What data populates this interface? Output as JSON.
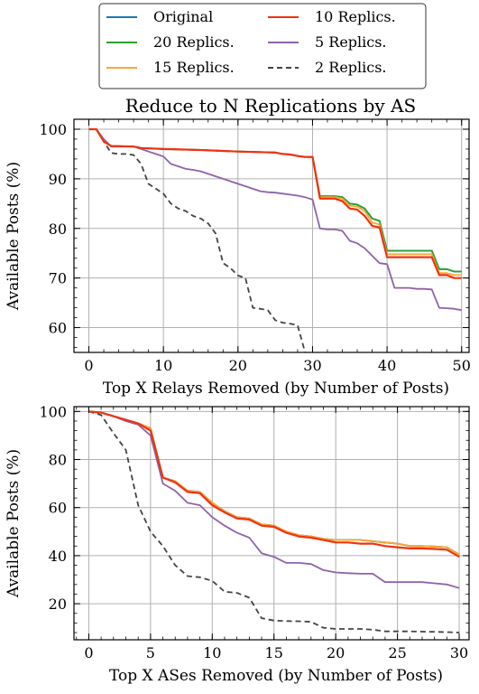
{
  "legend": {
    "items": [
      {
        "key": "orig",
        "label": "Original"
      },
      {
        "key": "r20",
        "label": "20 Replics."
      },
      {
        "key": "r15",
        "label": "15 Replics."
      },
      {
        "key": "r10",
        "label": "10 Replics."
      },
      {
        "key": "r5",
        "label": "5 Replics."
      },
      {
        "key": "r2",
        "label": "2 Replics."
      }
    ]
  },
  "colors": {
    "orig": "#1f77b4",
    "r20": "#2ca02c",
    "r15": "#ffa533",
    "r10": "#ee3311",
    "r5": "#8e63a8",
    "r2": "#444444"
  },
  "chart_data": [
    {
      "type": "line",
      "title": "Reduce to N Replications by AS",
      "xlabel": "Top X Relays Removed (by Number of Posts)",
      "ylabel": "Available Posts (%)",
      "xlim": [
        -2,
        51
      ],
      "ylim": [
        55,
        102
      ],
      "xticks": [
        0,
        10,
        20,
        30,
        40,
        50
      ],
      "yticks": [
        60,
        70,
        80,
        90,
        100
      ],
      "grid": true,
      "series": [
        {
          "key": "orig",
          "name": "Original",
          "x": [
            0,
            1,
            2,
            3,
            6,
            7,
            10,
            15,
            20,
            25,
            26,
            27,
            28,
            29,
            30,
            31,
            33,
            34,
            35,
            36,
            37,
            38,
            39,
            40,
            44,
            45,
            46,
            47,
            48,
            49,
            50
          ],
          "y": [
            100,
            100,
            97.5,
            96.6,
            96.5,
            96.2,
            96.0,
            95.8,
            95.5,
            95.3,
            95.0,
            94.9,
            94.6,
            94.4,
            94.4,
            86.5,
            86.5,
            86.3,
            85.0,
            84.8,
            84.0,
            82.0,
            81.5,
            75.5,
            75.5,
            75.5,
            75.5,
            71.8,
            71.8,
            71.3,
            71.3
          ]
        },
        {
          "key": "r20",
          "name": "20 Replics.",
          "x": [
            0,
            1,
            2,
            3,
            6,
            7,
            10,
            15,
            20,
            25,
            26,
            27,
            28,
            29,
            30,
            31,
            33,
            34,
            35,
            36,
            37,
            38,
            39,
            40,
            44,
            45,
            46,
            47,
            48,
            49,
            50
          ],
          "y": [
            100,
            100,
            97.5,
            96.6,
            96.5,
            96.2,
            96.0,
            95.8,
            95.5,
            95.3,
            95.0,
            94.9,
            94.6,
            94.4,
            94.4,
            86.5,
            86.5,
            86.3,
            85.0,
            84.8,
            84.0,
            82.0,
            81.5,
            75.5,
            75.5,
            75.5,
            75.5,
            71.8,
            71.8,
            71.3,
            71.3
          ]
        },
        {
          "key": "r15",
          "name": "15 Replics.",
          "x": [
            0,
            1,
            2,
            3,
            6,
            7,
            10,
            15,
            20,
            25,
            26,
            27,
            28,
            29,
            30,
            31,
            33,
            34,
            35,
            36,
            37,
            38,
            39,
            40,
            44,
            45,
            46,
            47,
            48,
            49,
            50
          ],
          "y": [
            100,
            100,
            97.5,
            96.6,
            96.5,
            96.2,
            96.0,
            95.8,
            95.5,
            95.3,
            95.0,
            94.9,
            94.6,
            94.4,
            94.4,
            86.3,
            86.3,
            86.0,
            84.6,
            84.4,
            83.5,
            81.2,
            80.8,
            74.8,
            74.8,
            74.8,
            74.8,
            71.0,
            71.0,
            70.6,
            70.6
          ]
        },
        {
          "key": "r10",
          "name": "10 Replics.",
          "x": [
            0,
            1,
            2,
            3,
            6,
            7,
            10,
            15,
            20,
            25,
            26,
            27,
            28,
            29,
            30,
            31,
            33,
            34,
            35,
            36,
            37,
            38,
            39,
            40,
            44,
            45,
            46,
            47,
            48,
            49,
            50
          ],
          "y": [
            100,
            100,
            97.5,
            96.6,
            96.5,
            96.2,
            96.0,
            95.8,
            95.5,
            95.3,
            95.0,
            94.9,
            94.6,
            94.4,
            94.4,
            86.0,
            86.0,
            85.5,
            84.0,
            83.8,
            82.5,
            80.5,
            80.2,
            74.2,
            74.2,
            74.2,
            74.2,
            70.6,
            70.6,
            70.0,
            70.0
          ]
        },
        {
          "key": "r5",
          "name": "5 Replics.",
          "x": [
            0,
            1,
            2,
            3,
            6,
            7,
            8,
            9,
            10,
            11,
            12,
            13,
            14,
            15,
            16,
            17,
            18,
            19,
            20,
            21,
            22,
            23,
            24,
            25,
            26,
            27,
            28,
            29,
            30,
            31,
            32,
            33,
            34,
            35,
            36,
            37,
            38,
            39,
            40,
            41,
            42,
            43,
            44,
            45,
            46,
            47,
            48,
            49,
            50
          ],
          "y": [
            100,
            100,
            98,
            96.5,
            96.5,
            96,
            95.5,
            95,
            94.5,
            93,
            92.5,
            92,
            91.8,
            91.5,
            91,
            90.5,
            90,
            89.5,
            89,
            88.5,
            88,
            87.5,
            87.3,
            87.2,
            87,
            86.8,
            86.6,
            86.3,
            85.8,
            80,
            79.8,
            79.8,
            79.5,
            77.5,
            77,
            76,
            74.5,
            73,
            72.8,
            68,
            68,
            68,
            67.8,
            67.8,
            67.7,
            64,
            63.9,
            63.8,
            63.5
          ]
        },
        {
          "key": "r2",
          "name": "2 Replics.",
          "x": [
            0,
            1,
            2,
            3,
            4,
            5,
            6,
            7,
            8,
            9,
            10,
            11,
            12,
            13,
            14,
            15,
            16,
            17,
            18,
            19,
            20,
            21,
            22,
            23,
            24,
            25,
            26,
            27,
            28,
            29
          ],
          "y": [
            100,
            100,
            97.5,
            95.2,
            95,
            95,
            94.8,
            93,
            89,
            88,
            87,
            85,
            84,
            83.5,
            82.5,
            82,
            81,
            79,
            73,
            72,
            70.5,
            70,
            64,
            63.8,
            63.5,
            61.5,
            61,
            60.8,
            60.5,
            55
          ]
        }
      ]
    },
    {
      "type": "line",
      "title": "",
      "xlabel": "Top X ASes Removed (by Number of Posts)",
      "ylabel": "Available Posts (%)",
      "xlim": [
        -1.2,
        30.8
      ],
      "ylim": [
        5,
        102
      ],
      "xticks": [
        0,
        5,
        10,
        15,
        20,
        25,
        30
      ],
      "yticks": [
        20,
        40,
        60,
        80,
        100
      ],
      "grid": true,
      "series": [
        {
          "key": "orig",
          "name": "Original",
          "x": [
            0,
            1,
            2,
            3,
            4,
            5,
            6,
            7,
            8,
            9,
            10,
            11,
            12,
            13,
            14,
            15,
            16,
            17,
            18,
            19,
            20,
            21,
            22,
            23,
            24,
            25,
            26,
            27,
            28,
            29,
            30
          ],
          "y": [
            100,
            99.5,
            98,
            96.5,
            95,
            93,
            72.5,
            71,
            67,
            66.5,
            62,
            58.5,
            56,
            55.5,
            53,
            52.5,
            50,
            48.5,
            48,
            47,
            46.5,
            46.5,
            46.5,
            46,
            45.5,
            45,
            44,
            44,
            43.8,
            43.5,
            40.5
          ]
        },
        {
          "key": "r20",
          "name": "20 Replics.",
          "x": [
            0,
            1,
            2,
            3,
            4,
            5,
            6,
            7,
            8,
            9,
            10,
            11,
            12,
            13,
            14,
            15,
            16,
            17,
            18,
            19,
            20,
            21,
            22,
            23,
            24,
            25,
            26,
            27,
            28,
            29,
            30
          ],
          "y": [
            100,
            99.5,
            98,
            96.5,
            95,
            93,
            72.5,
            71,
            67,
            66.5,
            62,
            58.5,
            56,
            55.5,
            53,
            52.5,
            50,
            48.5,
            48,
            47,
            46.5,
            46.5,
            46.5,
            46,
            45.5,
            45,
            44,
            44,
            43.8,
            43.5,
            40.5
          ]
        },
        {
          "key": "r15",
          "name": "15 Replics.",
          "x": [
            0,
            1,
            2,
            3,
            4,
            5,
            6,
            7,
            8,
            9,
            10,
            11,
            12,
            13,
            14,
            15,
            16,
            17,
            18,
            19,
            20,
            21,
            22,
            23,
            24,
            25,
            26,
            27,
            28,
            29,
            30
          ],
          "y": [
            100,
            99.5,
            98,
            96.5,
            95,
            93,
            72.5,
            71,
            67,
            66.5,
            62,
            58.5,
            56,
            55.5,
            53,
            52.5,
            50,
            48.5,
            48,
            47,
            46.5,
            46.5,
            46.5,
            46,
            45.5,
            45,
            44,
            44,
            43.8,
            43.5,
            40.5
          ]
        },
        {
          "key": "r10",
          "name": "10 Replics.",
          "x": [
            0,
            1,
            2,
            3,
            4,
            5,
            6,
            7,
            8,
            9,
            10,
            11,
            12,
            13,
            14,
            15,
            16,
            17,
            18,
            19,
            20,
            21,
            22,
            23,
            24,
            25,
            26,
            27,
            28,
            29,
            30
          ],
          "y": [
            100,
            99.5,
            98,
            96.5,
            95,
            92,
            72.5,
            70.5,
            66.5,
            66,
            61,
            58,
            55.5,
            55,
            52.5,
            52,
            49.5,
            48,
            47.5,
            46.5,
            45.5,
            45.5,
            45,
            45,
            44,
            43.5,
            43,
            43,
            42.8,
            42.5,
            39.5
          ]
        },
        {
          "key": "r5",
          "name": "5 Replics.",
          "x": [
            0,
            1,
            2,
            3,
            4,
            5,
            6,
            7,
            8,
            9,
            10,
            11,
            12,
            13,
            14,
            15,
            16,
            17,
            18,
            19,
            20,
            21,
            22,
            23,
            24,
            25,
            26,
            27,
            28,
            29,
            30
          ],
          "y": [
            100,
            99.5,
            98,
            96,
            94.5,
            90,
            70,
            67,
            62,
            61,
            56,
            52.5,
            49.5,
            47.5,
            41,
            39.5,
            37,
            37,
            36.5,
            34,
            33,
            32.7,
            32.5,
            32.5,
            29,
            29,
            29,
            29,
            28.5,
            28,
            26.5
          ]
        },
        {
          "key": "r2",
          "name": "2 Replics.",
          "x": [
            0,
            1,
            2,
            3,
            4,
            5,
            6,
            7,
            8,
            9,
            10,
            11,
            12,
            13,
            14,
            15,
            16,
            17,
            18,
            19,
            20,
            21,
            22,
            23,
            24,
            25,
            26,
            27,
            28,
            29,
            30
          ],
          "y": [
            100,
            98.5,
            91,
            84,
            61,
            50,
            44,
            36,
            31.5,
            31,
            29.5,
            25,
            24.5,
            22.5,
            14,
            13,
            12.8,
            12.7,
            12.5,
            10,
            9.5,
            9.5,
            9.5,
            9.2,
            8.5,
            8.5,
            8.5,
            8.4,
            8.3,
            8.2,
            8
          ]
        }
      ]
    }
  ]
}
